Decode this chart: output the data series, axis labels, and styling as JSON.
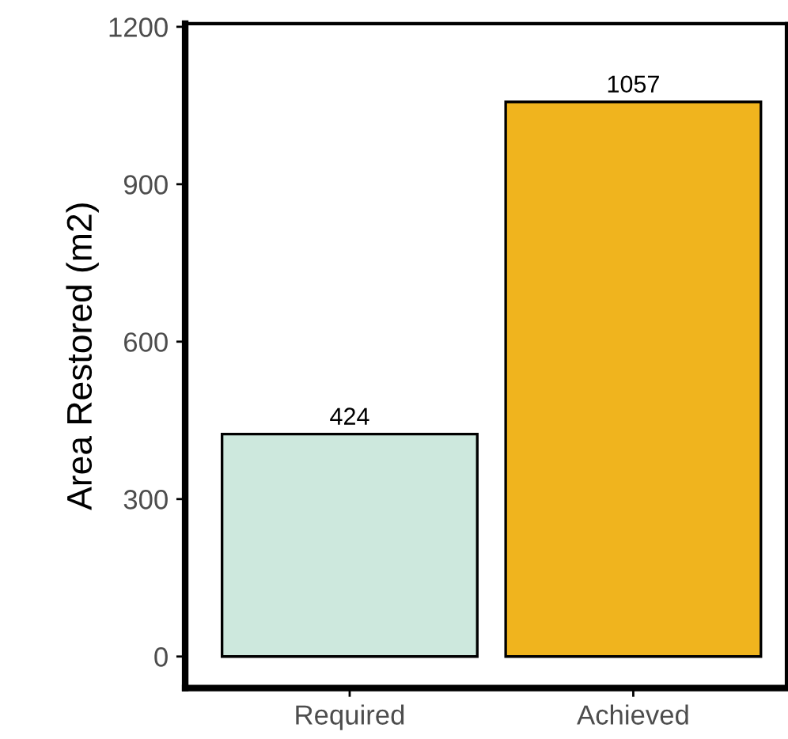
{
  "chart_data": {
    "type": "bar",
    "ylabel": "Area Restored (m2)",
    "categories": [
      "Required",
      "Achieved"
    ],
    "values": [
      424,
      1057
    ],
    "colors": [
      "#cde8dd",
      "#f0b41e"
    ],
    "ylim": [
      -60,
      1206
    ],
    "yticks": [
      0,
      300,
      600,
      900,
      1200
    ],
    "data_labels": true,
    "grid": false,
    "legend": false
  }
}
